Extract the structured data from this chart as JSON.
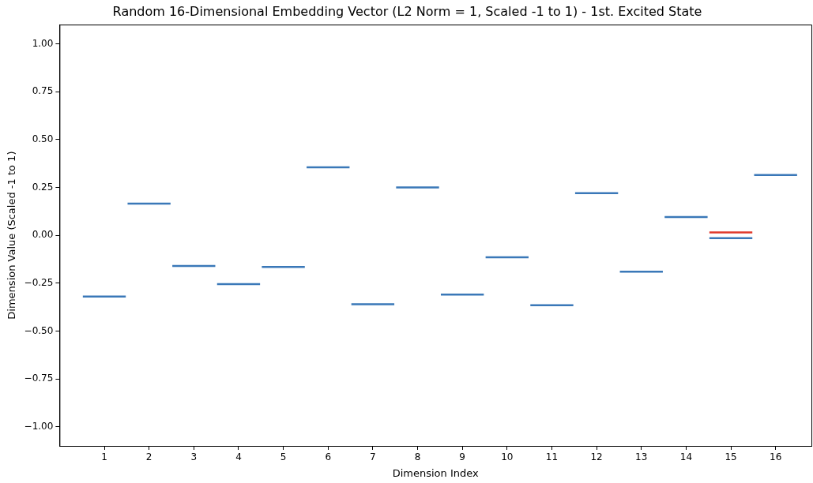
{
  "chart_data": {
    "type": "line",
    "title": "Random 16-Dimensional Embedding Vector (L2 Norm = 1, Scaled -1 to 1) - 1st. Excited State",
    "xlabel": "Dimension Index",
    "ylabel": "Dimension Value (Scaled -1 to 1)",
    "series": [
      {
        "color": "#3a78b8",
        "x": [
          0.52,
          1.48,
          1.5,
          1.52,
          2.48,
          2.5,
          2.52,
          3.48,
          3.5,
          3.52,
          4.48,
          4.5,
          4.52,
          5.48,
          5.5,
          5.52,
          6.48,
          6.5,
          6.52,
          7.48,
          7.5,
          7.52,
          8.48,
          8.5,
          8.52,
          9.48,
          9.5,
          9.52,
          10.48,
          10.5,
          10.52,
          11.48,
          11.5,
          11.52,
          12.48,
          12.5,
          12.52,
          13.48,
          13.5,
          13.52,
          14.48,
          14.5,
          14.52,
          15.48,
          15.5,
          15.52,
          16.48
        ],
        "values": [
          -0.32,
          -0.32,
          null,
          0.165,
          0.165,
          null,
          -0.16,
          -0.16,
          null,
          -0.255,
          -0.255,
          null,
          -0.165,
          -0.165,
          null,
          0.355,
          0.355,
          null,
          -0.36,
          -0.36,
          null,
          0.25,
          0.25,
          null,
          -0.31,
          -0.31,
          null,
          -0.115,
          -0.115,
          null,
          -0.365,
          -0.365,
          null,
          0.22,
          0.22,
          null,
          -0.19,
          -0.19,
          null,
          0.095,
          0.095,
          null,
          -0.015,
          -0.015,
          null,
          0.315,
          0.315
        ]
      },
      {
        "color": "#e0392b",
        "x": [
          14.52,
          15.48
        ],
        "values": [
          0.015,
          0.015
        ]
      }
    ],
    "xlim": [
      0,
      16.8
    ],
    "xticks": [
      1,
      2,
      3,
      4,
      5,
      6,
      7,
      8,
      9,
      10,
      11,
      12,
      13,
      14,
      15,
      16
    ],
    "ylim": [
      -1.1,
      1.1
    ],
    "yticks": [
      {
        "value": -1,
        "label": "−1.00"
      },
      {
        "value": -0.75,
        "label": "−0.75"
      },
      {
        "value": -0.5,
        "label": "−0.50"
      },
      {
        "value": -0.25,
        "label": "−0.25"
      },
      {
        "value": 0,
        "label": "0.00"
      },
      {
        "value": 0.25,
        "label": "0.25"
      },
      {
        "value": 0.5,
        "label": "0.50"
      },
      {
        "value": 0.75,
        "label": "0.75"
      },
      {
        "value": 1,
        "label": "1.00"
      }
    ],
    "grid": false,
    "legend": false
  }
}
